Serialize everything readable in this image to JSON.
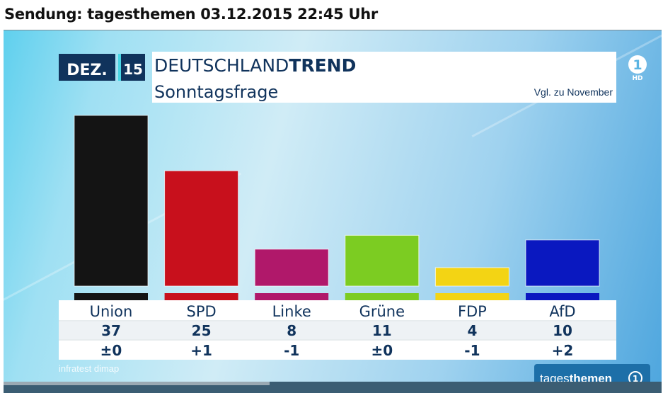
{
  "broadcast_header": "Sendung: tagesthemen 03.12.2015 22:45 Uhr",
  "badge": {
    "month": "DEZ.",
    "year": "15"
  },
  "brand": {
    "title_regular": "DEUTSCHLAND",
    "title_bold": "TREND",
    "hd_label": "HD",
    "one_label": "1"
  },
  "subtitle": "Sonntagsfrage",
  "comparison_note": "Vgl. zu November",
  "source": "infratest dimap",
  "logo": {
    "part1": "tages",
    "part2": "themen"
  },
  "colors": {
    "Union": "#141414",
    "SPD": "#c8101c",
    "Linke": "#b0186a",
    "Grüne": "#7ccc22",
    "FDP": "#f3d414",
    "AfD": "#0a18c0"
  },
  "chart_data": {
    "type": "bar",
    "title": "Sonntagsfrage",
    "categories": [
      "Union",
      "SPD",
      "Linke",
      "Grüne",
      "FDP",
      "AfD"
    ],
    "values": [
      37,
      25,
      8,
      11,
      4,
      10
    ],
    "changes": [
      "±0",
      "+1",
      "-1",
      "±0",
      "-1",
      "+2"
    ],
    "ylim": [
      0,
      37
    ],
    "xlabel": "",
    "ylabel": ""
  }
}
